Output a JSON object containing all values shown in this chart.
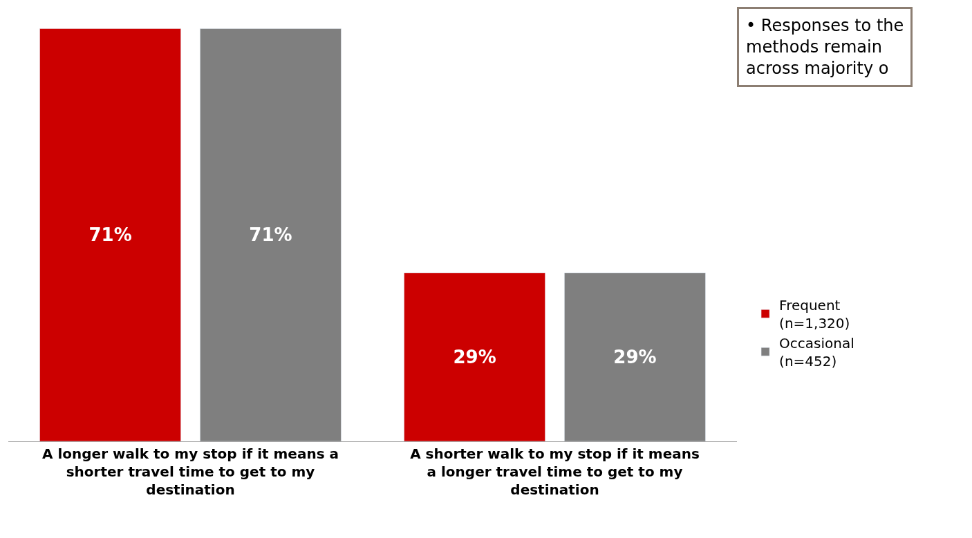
{
  "chart_data": {
    "type": "bar",
    "categories": [
      "A longer walk to my stop if it means a shorter travel time to get to my destination",
      "A shorter walk to my stop if it means a longer travel time to get to my destination"
    ],
    "series": [
      {
        "name": "Frequent (n=1,320)",
        "color": "#cc0000",
        "values": [
          71,
          29
        ],
        "value_labels": [
          "71%",
          "29%"
        ]
      },
      {
        "name": "Occasional (n=452)",
        "color": "#7f7f7f",
        "values": [
          71,
          29
        ],
        "value_labels": [
          "71%",
          "29%"
        ]
      }
    ],
    "annotations": [
      "• Responses to the\nmethods remain\nacross majority o"
    ],
    "legend": "right"
  }
}
